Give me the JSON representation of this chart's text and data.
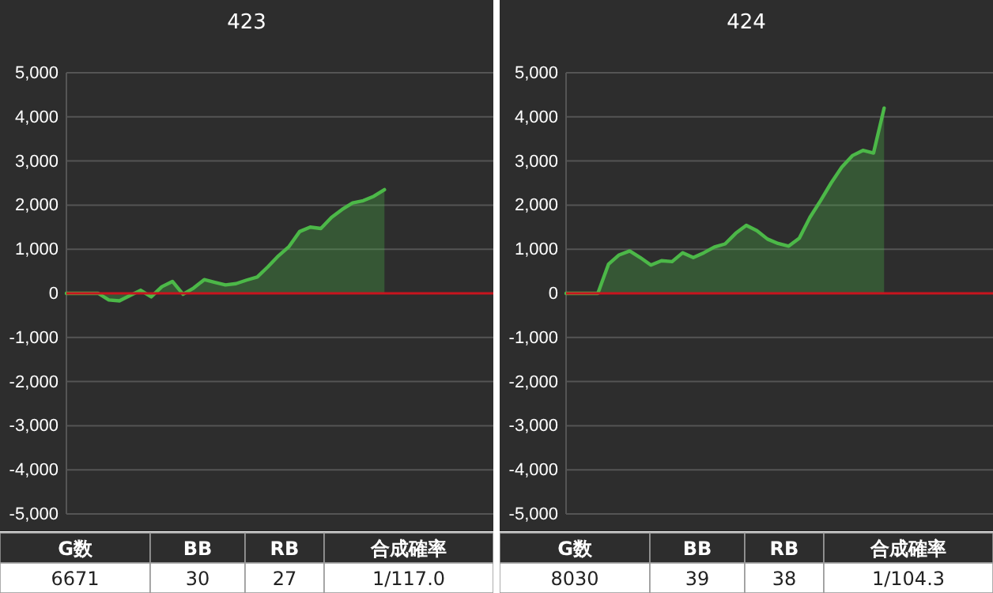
{
  "chart_data": [
    {
      "type": "area",
      "title": "423",
      "categories": [
        null,
        null,
        null,
        null,
        null,
        null,
        null,
        null,
        null,
        null,
        null,
        null,
        null,
        null,
        null,
        null,
        null,
        null,
        null,
        null,
        null,
        null,
        null,
        null,
        null,
        null,
        null,
        null,
        null,
        null,
        null
      ],
      "series": [
        {
          "color": "#4cb848",
          "values": [
            0,
            0,
            0,
            0,
            -150,
            -170,
            -50,
            70,
            -80,
            150,
            270,
            -20,
            120,
            310,
            250,
            190,
            220,
            300,
            370,
            600,
            850,
            1060,
            1400,
            1500,
            1470,
            1720,
            1900,
            2050,
            2100,
            2200,
            2350
          ]
        }
      ],
      "ylim": [
        -5000,
        5000
      ],
      "yticks": [
        {
          "value": -5000,
          "label": "-5,000"
        },
        {
          "value": -4000,
          "label": "-4,000"
        },
        {
          "value": -3000,
          "label": "-3,000"
        },
        {
          "value": -2000,
          "label": "-2,000"
        },
        {
          "value": -1000,
          "label": "-1,000"
        },
        0,
        {
          "value": 1000,
          "label": "1,000"
        },
        {
          "value": 2000,
          "label": "2,000"
        },
        {
          "value": 3000,
          "label": "3,000"
        },
        {
          "value": 4000,
          "label": "4,000"
        },
        {
          "value": 5000,
          "label": "5,000"
        }
      ],
      "grid": "y",
      "tick_labels": "y",
      "ref_lines": [
        {
          "axis": "y",
          "value": 0,
          "color": "#c8141e"
        }
      ],
      "annotations": [
        "G数",
        "BB",
        "RB",
        "合成確率",
        "6671",
        "30",
        "27",
        "1/117.0"
      ]
    },
    {
      "type": "area",
      "title": "424",
      "categories": [
        null,
        null,
        null,
        null,
        null,
        null,
        null,
        null,
        null,
        null,
        null,
        null,
        null,
        null,
        null,
        null,
        null,
        null,
        null,
        null,
        null,
        null,
        null,
        null,
        null,
        null,
        null,
        null,
        null,
        null,
        null
      ],
      "series": [
        {
          "color": "#4cb848",
          "values": [
            0,
            0,
            0,
            0,
            660,
            870,
            960,
            810,
            640,
            740,
            720,
            920,
            810,
            920,
            1050,
            1120,
            1360,
            1540,
            1420,
            1230,
            1130,
            1070,
            1250,
            1720,
            2100,
            2500,
            2860,
            3120,
            3240,
            3180,
            4200
          ]
        }
      ],
      "ylim": [
        -5000,
        5000
      ],
      "yticks": [
        {
          "value": -5000,
          "label": "-5,000"
        },
        {
          "value": -4000,
          "label": "-4,000"
        },
        {
          "value": -3000,
          "label": "-3,000"
        },
        {
          "value": -2000,
          "label": "-2,000"
        },
        {
          "value": -1000,
          "label": "-1,000"
        },
        0,
        {
          "value": 1000,
          "label": "1,000"
        },
        {
          "value": 2000,
          "label": "2,000"
        },
        {
          "value": 3000,
          "label": "3,000"
        },
        {
          "value": 4000,
          "label": "4,000"
        },
        {
          "value": 5000,
          "label": "5,000"
        }
      ],
      "grid": "y",
      "tick_labels": "y",
      "ref_lines": [
        {
          "axis": "y",
          "value": 0,
          "color": "#c8141e"
        }
      ],
      "annotations": [
        "G数",
        "BB",
        "RB",
        "合成確率",
        "8030",
        "39",
        "38",
        "1/104.3"
      ]
    }
  ]
}
